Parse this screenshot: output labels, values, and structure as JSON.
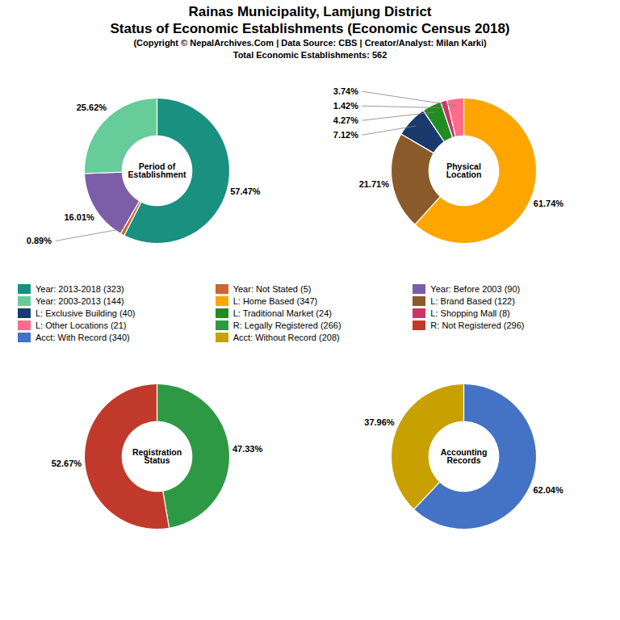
{
  "title": "Rainas Municipality, Lamjung District\nStatus of Economic Establishments (Economic Census 2018)",
  "subtitle": "(Copyright © NepalArchives.Com | Data Source: CBS | Creator/Analyst: Milan Karki)\nTotal Economic Establishments: 562",
  "chart_data": [
    {
      "type": "pie",
      "title": "Period of\nEstablishment",
      "categories": [
        "Year: 2013-2018 (323)",
        "Year: Not Stated (5)",
        "Year: Before 2003 (90)",
        "Year: 2003-2013 (144)"
      ],
      "values": [
        57.47,
        0.89,
        16.01,
        25.62
      ],
      "value_labels": [
        "57.47%",
        "0.89%",
        "16.01%",
        "25.62%"
      ],
      "colors": [
        "#1a9080",
        "#CC6633",
        "#7B5EA7",
        "#66CC99"
      ],
      "data_labels": true
    },
    {
      "type": "pie",
      "title": "Physical\nLocation",
      "categories": [
        "L: Home Based (347)",
        "L: Brand Based (122)",
        "L: Exclusive Building (40)",
        "L: Traditional Market (24)",
        "L: Shopping Mall (8)",
        "L: Other Locations (21)"
      ],
      "values": [
        61.74,
        21.71,
        7.12,
        4.27,
        1.42,
        3.74
      ],
      "value_labels": [
        "61.74%",
        "21.71%",
        "7.12%",
        "4.27%",
        "1.42%",
        "3.74%"
      ],
      "colors": [
        "#FFA500",
        "#8B5A2B",
        "#1a3a6e",
        "#228B22",
        "#CC3366",
        "#FF6B8A"
      ],
      "data_labels": true
    },
    {
      "type": "pie",
      "title": "Registration\nStatus",
      "categories": [
        "R: Legally Registered (266)",
        "R: Not Registered (296)"
      ],
      "values": [
        47.33,
        52.67
      ],
      "value_labels": [
        "47.33%",
        "52.67%"
      ],
      "colors": [
        "#2E9944",
        "#C0392B"
      ],
      "data_labels": true
    },
    {
      "type": "pie",
      "title": "Accounting\nRecords",
      "categories": [
        "Acct: With Record (340)",
        "Acct: Without Record (208)"
      ],
      "values": [
        62.04,
        37.96
      ],
      "value_labels": [
        "62.04%",
        "37.96%"
      ],
      "colors": [
        "#4472C4",
        "#C8A000"
      ],
      "data_labels": true
    }
  ]
}
